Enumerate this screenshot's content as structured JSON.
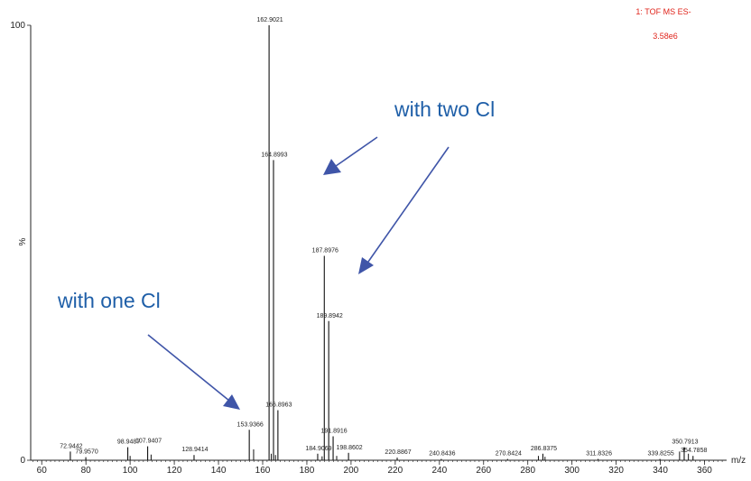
{
  "header": {
    "function": "1: TOF MS ES-",
    "intensity": "3.58e6"
  },
  "notes": {
    "two_cl": "with two Cl",
    "one_cl": "with one Cl"
  },
  "chart_data": {
    "type": "bar",
    "xlabel": "m/z",
    "ylabel": "%",
    "xlim": [
      55,
      370
    ],
    "ylim": [
      0,
      100
    ],
    "x_ticks": [
      60,
      80,
      100,
      120,
      140,
      160,
      180,
      200,
      220,
      240,
      260,
      280,
      300,
      320,
      340,
      360
    ],
    "x_tick_labels": [
      "60",
      "80",
      "100",
      "120",
      "140",
      "160",
      "180",
      "200",
      "220",
      "240",
      "260",
      "280",
      "300",
      "320",
      "340",
      "360"
    ],
    "y_ticks": [
      0,
      100
    ],
    "y_tick_labels": [
      "0",
      "100"
    ],
    "peaks": [
      {
        "mz": 72.9442,
        "intensity": 2.0,
        "label": "72.9442"
      },
      {
        "mz": 79.957,
        "intensity": 0.7,
        "label": "79.9570"
      },
      {
        "mz": 98.9487,
        "intensity": 3.0,
        "label": "98.9487"
      },
      {
        "mz": 107.9407,
        "intensity": 3.2,
        "label": "107.9407"
      },
      {
        "mz": 128.9414,
        "intensity": 1.2,
        "label": "128.9414"
      },
      {
        "mz": 153.9366,
        "intensity": 7.0,
        "label": "153.9366"
      },
      {
        "mz": 162.9021,
        "intensity": 100,
        "label": "162.9021"
      },
      {
        "mz": 164.8993,
        "intensity": 69,
        "label": "164.8993"
      },
      {
        "mz": 166.8963,
        "intensity": 11.5,
        "label": "166.8963"
      },
      {
        "mz": 184.9069,
        "intensity": 1.5,
        "label": "184.9069"
      },
      {
        "mz": 187.8976,
        "intensity": 47,
        "label": "187.8976"
      },
      {
        "mz": 189.8942,
        "intensity": 32,
        "label": "189.8942"
      },
      {
        "mz": 191.8916,
        "intensity": 5.5,
        "label": "191.8916"
      },
      {
        "mz": 198.8602,
        "intensity": 1.7,
        "label": "198.8602"
      },
      {
        "mz": 220.8867,
        "intensity": 0.6,
        "label": "220.8867"
      },
      {
        "mz": 240.8436,
        "intensity": 0.3,
        "label": "240.8436"
      },
      {
        "mz": 270.8424,
        "intensity": 0.3,
        "label": "270.8424"
      },
      {
        "mz": 286.8375,
        "intensity": 1.5,
        "label": "286.8375"
      },
      {
        "mz": 311.8326,
        "intensity": 0.3,
        "label": "311.8326"
      },
      {
        "mz": 339.8255,
        "intensity": 0.3,
        "label": "339.8255"
      },
      {
        "mz": 350.7913,
        "intensity": 3.0,
        "label": "350.7913"
      },
      {
        "mz": 354.7858,
        "intensity": 1.0,
        "label": "354.7858"
      }
    ],
    "minor_peaks": [
      {
        "mz": 100.0,
        "intensity": 1.0
      },
      {
        "mz": 109.5,
        "intensity": 1.3
      },
      {
        "mz": 155.9,
        "intensity": 2.5
      },
      {
        "mz": 163.9,
        "intensity": 1.5
      },
      {
        "mz": 165.8,
        "intensity": 1.2
      },
      {
        "mz": 186.9,
        "intensity": 0.9
      },
      {
        "mz": 193.5,
        "intensity": 1.0
      },
      {
        "mz": 284.8,
        "intensity": 1.0
      },
      {
        "mz": 287.8,
        "intensity": 0.8
      },
      {
        "mz": 348.7,
        "intensity": 2.0
      },
      {
        "mz": 352.7,
        "intensity": 1.5
      }
    ]
  }
}
